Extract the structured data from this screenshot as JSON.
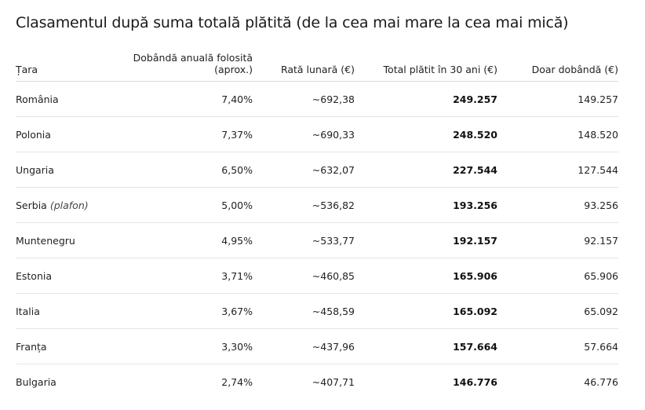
{
  "title": "Clasamentul după suma totală plătită (de la cea mai mare la cea mai mică)",
  "headers": {
    "country": "Țara",
    "rate_line1": "Dobândă anuală folosită",
    "rate_line2": "(aprox.)",
    "monthly": "Rată lunară (€)",
    "total": "Total plătit în 30 ani (€)",
    "interest": "Doar dobândă (€)"
  },
  "rows": [
    {
      "country": "România",
      "note": "",
      "rate": "7,40%",
      "monthly": "~692,38",
      "total": "249.257",
      "interest": "149.257"
    },
    {
      "country": "Polonia",
      "note": "",
      "rate": "7,37%",
      "monthly": "~690,33",
      "total": "248.520",
      "interest": "148.520"
    },
    {
      "country": "Ungaria",
      "note": "",
      "rate": "6,50%",
      "monthly": "~632,07",
      "total": "227.544",
      "interest": "127.544"
    },
    {
      "country": "Serbia",
      "note": "(plafon)",
      "rate": "5,00%",
      "monthly": "~536,82",
      "total": "193.256",
      "interest": "93.256"
    },
    {
      "country": "Muntenegru",
      "note": "",
      "rate": "4,95%",
      "monthly": "~533,77",
      "total": "192.157",
      "interest": "92.157"
    },
    {
      "country": "Estonia",
      "note": "",
      "rate": "3,71%",
      "monthly": "~460,85",
      "total": "165.906",
      "interest": "65.906"
    },
    {
      "country": "Italia",
      "note": "",
      "rate": "3,67%",
      "monthly": "~458,59",
      "total": "165.092",
      "interest": "65.092"
    },
    {
      "country": "Franța",
      "note": "",
      "rate": "3,30%",
      "monthly": "~437,96",
      "total": "157.664",
      "interest": "57.664"
    },
    {
      "country": "Bulgaria",
      "note": "",
      "rate": "2,74%",
      "monthly": "~407,71",
      "total": "146.776",
      "interest": "46.776"
    }
  ]
}
